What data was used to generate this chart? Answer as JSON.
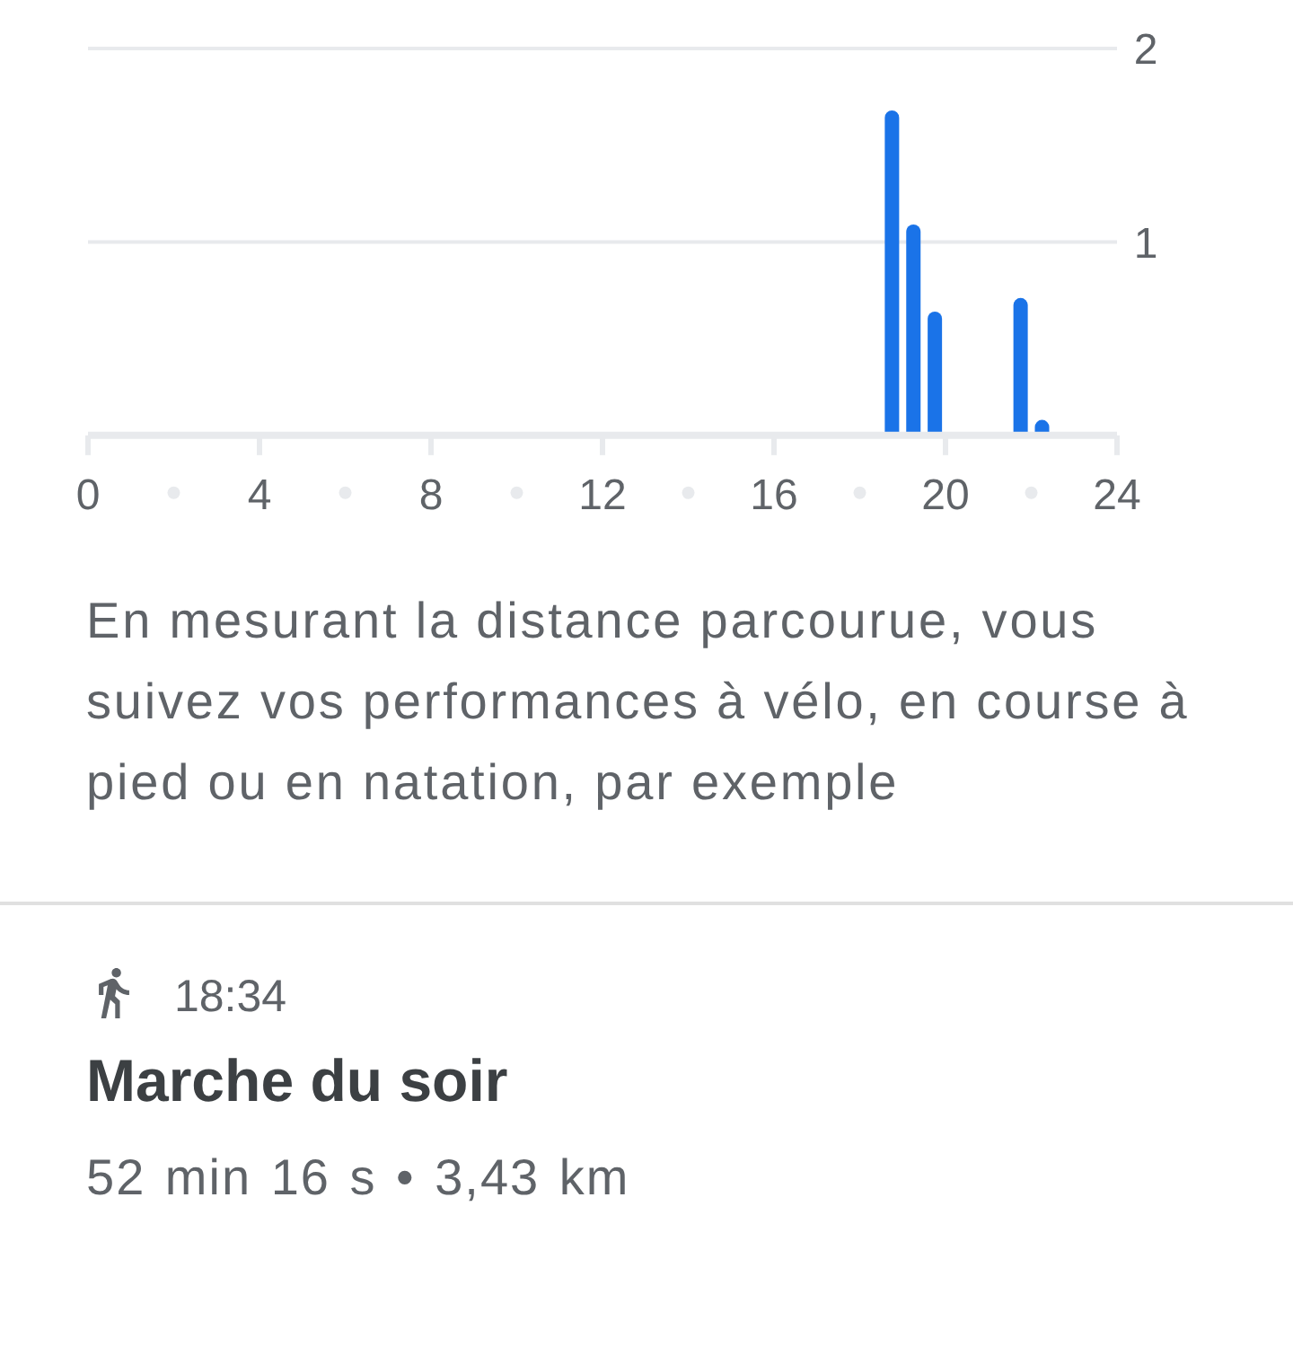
{
  "chart_data": [
    {
      "type": "bar",
      "x": [
        18.75,
        19.25,
        19.75,
        21.75,
        22.25
      ],
      "values": [
        1.68,
        1.09,
        0.64,
        0.71,
        0.08
      ],
      "color": "#1a73e8",
      "xlim": [
        0,
        24
      ],
      "xticks": [
        0,
        4,
        8,
        12,
        16,
        20,
        24
      ],
      "ylim": [
        0,
        2
      ],
      "yticks": [
        1,
        2
      ],
      "grid": "y",
      "annotations": [
        "En mesurant la distance parcourue, vous suivez vos performances à vélo, en course à pied ou en natation, par exemple"
      ]
    },
    {
      "type": "other",
      "annotations": [
        "18:34",
        "Marche du soir",
        "52 min 16 s • 3,43 km"
      ]
    }
  ]
}
